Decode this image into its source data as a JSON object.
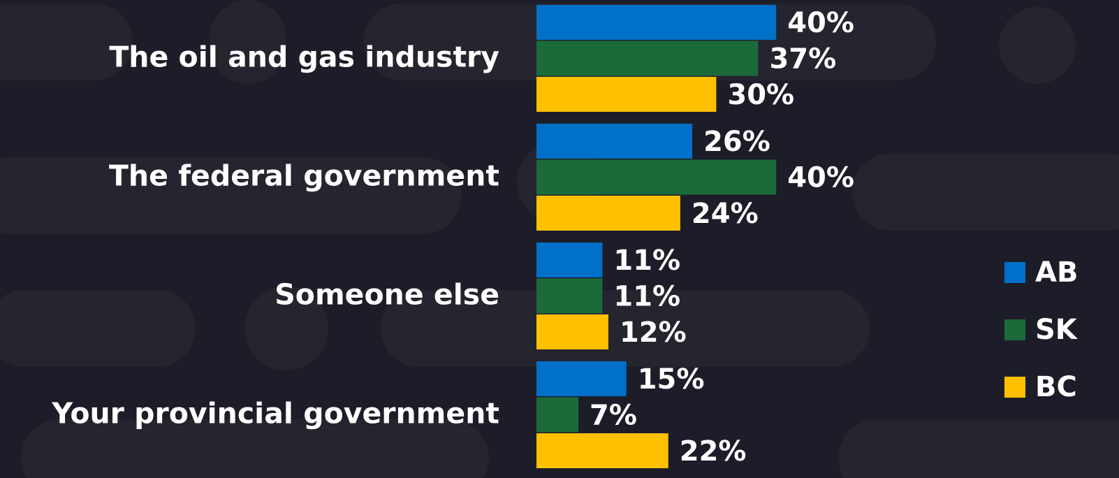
{
  "chart_data": {
    "type": "bar",
    "orientation": "horizontal",
    "categories": [
      "The oil and gas industry",
      "The federal government",
      "Someone else",
      "Your provincial government"
    ],
    "series": [
      {
        "name": "AB",
        "color": "#0070c8",
        "values": [
          40,
          26,
          11,
          15
        ],
        "value_labels": [
          "40%",
          "26%",
          "11%",
          "15%"
        ]
      },
      {
        "name": "SK",
        "color": "#1b6b3a",
        "values": [
          37,
          40,
          11,
          7
        ],
        "value_labels": [
          "37%",
          "40%",
          "11%",
          "7%"
        ]
      },
      {
        "name": "BC",
        "color": "#ffc000",
        "values": [
          30,
          24,
          12,
          22
        ],
        "value_labels": [
          "30%",
          "24%",
          "12%",
          "22%"
        ]
      }
    ],
    "legend": "right"
  }
}
